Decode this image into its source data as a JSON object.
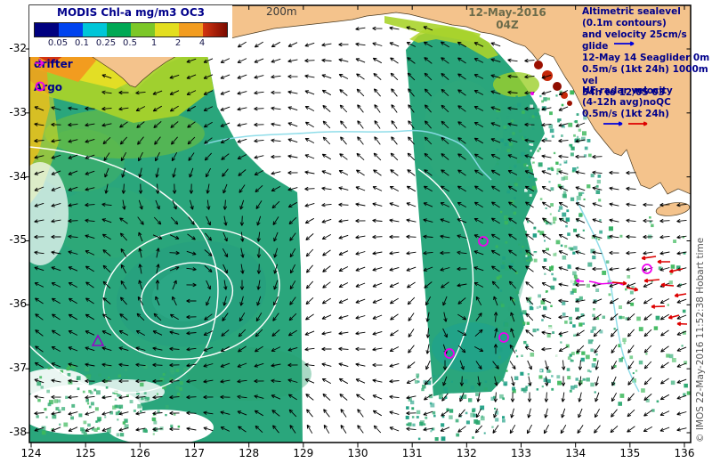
{
  "title": "MODIS Chl-a mg/m3 OC3",
  "colorbar": {
    "tick_labels": [
      "0.05",
      "0.1",
      "0.25",
      "0.5",
      "1",
      "2",
      "4"
    ],
    "segment_colors": [
      "#00007f",
      "#0043ef",
      "#00c6d8",
      "#00a855",
      "#7cc728",
      "#e3de1f",
      "#f29c1f",
      "#d43510"
    ],
    "last_dark": "#7a0a00"
  },
  "legend": {
    "drifter_label": "drifter",
    "argo_label": "Argo"
  },
  "depth_contour_label": "200m",
  "datetime": {
    "date": "12-May-2016",
    "time": "04Z"
  },
  "annotations": {
    "altimetry": [
      "Altimetric sealevel",
      "(0.1m contours)",
      "and velocity 25cm/s glide",
      "12-May 14 Seaglider 0m",
      "0.5m/s (1kt 24h) 1000m vel",
      "54h to 12/05 03"
    ],
    "hf_radar": [
      "HF radar velocity",
      "(4-12h avg)noQC",
      "0.5m/s (1kt 24h)"
    ]
  },
  "copyright": "© IMOS 22-May-2016 11:52:38 Hobart time",
  "axes": {
    "lon_labels": [
      "124",
      "125",
      "126",
      "127",
      "128",
      "129",
      "130",
      "131",
      "132",
      "133",
      "134",
      "135",
      "136"
    ],
    "lat_labels": [
      "-32",
      "-33",
      "-34",
      "-35",
      "-36",
      "-37",
      "-38"
    ]
  },
  "colors": {
    "land": "#f4c38c",
    "ocean_green": "#2aa67c",
    "arrow": "#000000",
    "hf_arrow_red": "#dd0000",
    "scale_arrow_blue": "#0000dd",
    "magenta_marker": "#ee00ee",
    "glider_purple": "#9900cc",
    "cyan_contour": "#8adbe8",
    "sealevel_contour": "#ffffff"
  }
}
